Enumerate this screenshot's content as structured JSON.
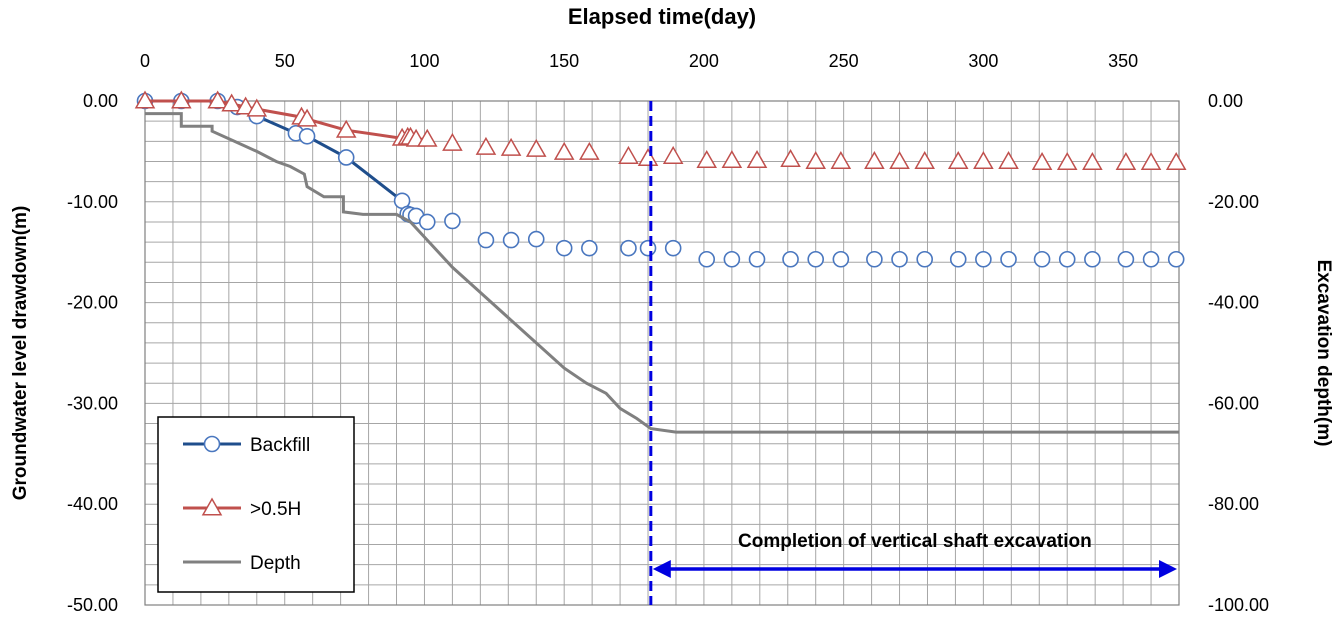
{
  "chart_data": {
    "type": "line",
    "title": "Elapsed time(day)",
    "xlabel": "Elapsed time(day)",
    "ylabel": "Groundwater level drawdown(m)",
    "y2label": "Excavation depth(m)",
    "xlim": [
      0,
      370
    ],
    "ylim": [
      -50,
      0
    ],
    "y2lim": [
      -100,
      0
    ],
    "x_ticks": [
      "0",
      "50",
      "100",
      "150",
      "200",
      "250",
      "300",
      "350"
    ],
    "y_ticks": [
      "0.00",
      "-10.00",
      "-20.00",
      "-30.00",
      "-40.00",
      "-50.00"
    ],
    "y2_ticks": [
      "0.00",
      "-20.00",
      "-40.00",
      "-60.00",
      "-80.00",
      "-100.00"
    ],
    "grid": true,
    "legend_position": "bottom-left",
    "series": [
      {
        "name": "Backfill",
        "axis": "left",
        "color": "#1f4e8c",
        "marker": "circle",
        "line": "solid until day 101",
        "points": [
          [
            0,
            0
          ],
          [
            13,
            0
          ],
          [
            26,
            0
          ],
          [
            33,
            -0.6
          ],
          [
            40,
            -1.5
          ],
          [
            54,
            -3.2
          ],
          [
            58,
            -3.5
          ],
          [
            72,
            -5.6
          ],
          [
            92,
            -9.9
          ],
          [
            94,
            -11.2
          ],
          [
            95,
            -11.3
          ],
          [
            97,
            -11.4
          ],
          [
            101,
            -12.0
          ],
          [
            110,
            -11.9
          ],
          [
            122,
            -13.8
          ],
          [
            131,
            -13.8
          ],
          [
            140,
            -13.7
          ],
          [
            150,
            -14.6
          ],
          [
            159,
            -14.6
          ],
          [
            173,
            -14.6
          ],
          [
            180,
            -14.6
          ],
          [
            189,
            -14.6
          ],
          [
            201,
            -15.7
          ],
          [
            210,
            -15.7
          ],
          [
            219,
            -15.7
          ],
          [
            231,
            -15.7
          ],
          [
            240,
            -15.7
          ],
          [
            249,
            -15.7
          ],
          [
            261,
            -15.7
          ],
          [
            270,
            -15.7
          ],
          [
            279,
            -15.7
          ],
          [
            291,
            -15.7
          ],
          [
            300,
            -15.7
          ],
          [
            309,
            -15.7
          ],
          [
            321,
            -15.7
          ],
          [
            330,
            -15.7
          ],
          [
            339,
            -15.7
          ],
          [
            351,
            -15.7
          ],
          [
            360,
            -15.7
          ],
          [
            369,
            -15.7
          ]
        ]
      },
      {
        "name": ">0.5H",
        "axis": "left",
        "color": "#c0504d",
        "marker": "triangle",
        "line": "solid until day 101",
        "points": [
          [
            0,
            0
          ],
          [
            13,
            0
          ],
          [
            26,
            0
          ],
          [
            31,
            -0.3
          ],
          [
            36,
            -0.6
          ],
          [
            40,
            -0.8
          ],
          [
            56,
            -1.6
          ],
          [
            58,
            -1.8
          ],
          [
            72,
            -2.9
          ],
          [
            92,
            -3.7
          ],
          [
            94,
            -3.6
          ],
          [
            95,
            -3.6
          ],
          [
            97,
            -3.8
          ],
          [
            101,
            -3.8
          ],
          [
            110,
            -4.2
          ],
          [
            122,
            -4.6
          ],
          [
            131,
            -4.7
          ],
          [
            140,
            -4.8
          ],
          [
            150,
            -5.1
          ],
          [
            159,
            -5.1
          ],
          [
            173,
            -5.5
          ],
          [
            180,
            -5.7
          ],
          [
            189,
            -5.5
          ],
          [
            201,
            -5.9
          ],
          [
            210,
            -5.9
          ],
          [
            219,
            -5.9
          ],
          [
            231,
            -5.8
          ],
          [
            240,
            -6.0
          ],
          [
            249,
            -6.0
          ],
          [
            261,
            -6.0
          ],
          [
            270,
            -6.0
          ],
          [
            279,
            -6.0
          ],
          [
            291,
            -6.0
          ],
          [
            300,
            -6.0
          ],
          [
            309,
            -6.0
          ],
          [
            321,
            -6.1
          ],
          [
            330,
            -6.1
          ],
          [
            339,
            -6.1
          ],
          [
            351,
            -6.1
          ],
          [
            360,
            -6.1
          ],
          [
            369,
            -6.1
          ]
        ]
      },
      {
        "name": "Depth",
        "axis": "right",
        "color": "#808080",
        "marker": "none",
        "points": [
          [
            0,
            -2.5
          ],
          [
            13,
            -2.5
          ],
          [
            13,
            -5
          ],
          [
            24,
            -5
          ],
          [
            24,
            -6
          ],
          [
            32,
            -8
          ],
          [
            40,
            -10
          ],
          [
            47,
            -12
          ],
          [
            52,
            -13
          ],
          [
            57,
            -14.5
          ],
          [
            58,
            -17
          ],
          [
            64,
            -19
          ],
          [
            71,
            -19
          ],
          [
            71,
            -22
          ],
          [
            78,
            -22.5
          ],
          [
            90,
            -22.5
          ],
          [
            95,
            -24
          ],
          [
            100,
            -27
          ],
          [
            110,
            -33
          ],
          [
            120,
            -38
          ],
          [
            130,
            -43
          ],
          [
            140,
            -48
          ],
          [
            150,
            -53
          ],
          [
            158,
            -56
          ],
          [
            165,
            -58
          ],
          [
            170,
            -61
          ],
          [
            176,
            -63
          ],
          [
            181,
            -65
          ],
          [
            190,
            -65.7
          ],
          [
            250,
            -65.7
          ],
          [
            300,
            -65.7
          ],
          [
            370,
            -65.7
          ]
        ]
      }
    ],
    "annotations": [
      {
        "text": "Completion of vertical shaft excavation",
        "x_marker": 181,
        "arrow_from": 181,
        "arrow_to": 370,
        "color": "#0000e0"
      }
    ]
  }
}
